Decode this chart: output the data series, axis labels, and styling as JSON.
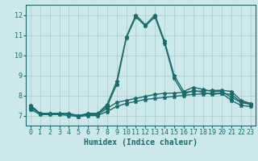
{
  "title": "",
  "xlabel": "Humidex (Indice chaleur)",
  "ylabel": "",
  "xlim": [
    -0.5,
    23.5
  ],
  "ylim": [
    6.5,
    12.5
  ],
  "yticks": [
    7,
    8,
    9,
    10,
    11,
    12
  ],
  "xticks": [
    0,
    1,
    2,
    3,
    4,
    5,
    6,
    7,
    8,
    9,
    10,
    11,
    12,
    13,
    14,
    15,
    16,
    17,
    18,
    19,
    20,
    21,
    22,
    23
  ],
  "background_color": "#cce8e8",
  "grid_color": "#aacccc",
  "line_color": "#1a6b6b",
  "lines": [
    [
      7.5,
      7.1,
      7.1,
      7.1,
      7.1,
      6.95,
      7.1,
      7.1,
      7.55,
      8.7,
      10.9,
      12.0,
      11.5,
      12.0,
      10.7,
      9.0,
      8.2,
      8.4,
      8.3,
      8.2,
      8.2,
      7.9,
      7.65,
      7.6
    ],
    [
      7.5,
      7.1,
      7.1,
      7.1,
      7.1,
      7.0,
      7.1,
      7.1,
      7.45,
      8.55,
      10.85,
      11.9,
      11.45,
      11.9,
      10.6,
      8.85,
      8.05,
      8.25,
      8.15,
      8.05,
      8.1,
      7.75,
      7.5,
      7.45
    ],
    [
      7.4,
      7.1,
      7.1,
      7.1,
      7.05,
      7.0,
      7.05,
      7.05,
      7.35,
      7.65,
      7.75,
      7.85,
      7.95,
      8.05,
      8.1,
      8.12,
      8.15,
      8.2,
      8.22,
      8.25,
      8.25,
      8.2,
      7.75,
      7.6
    ],
    [
      7.3,
      7.05,
      7.05,
      7.05,
      7.0,
      6.95,
      7.0,
      7.0,
      7.2,
      7.45,
      7.6,
      7.7,
      7.8,
      7.85,
      7.9,
      7.95,
      8.0,
      8.05,
      8.08,
      8.1,
      8.1,
      8.05,
      7.65,
      7.55
    ]
  ],
  "line_width": 1.0,
  "marker": "*",
  "marker_size": 3.5,
  "font_size": 7,
  "tick_font_size": 6
}
